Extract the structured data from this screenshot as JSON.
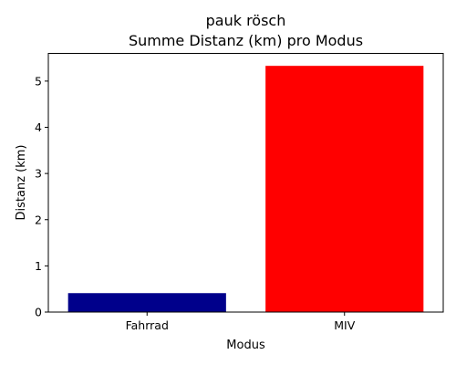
{
  "chart_data": {
    "type": "bar",
    "title_line1": "pauk rösch",
    "title_line2": "Summe Distanz (km) pro Modus",
    "xlabel": "Modus",
    "ylabel": "Distanz (km)",
    "categories": [
      "Fahrrad",
      "MIV"
    ],
    "values": [
      0.41,
      5.33
    ],
    "colors": [
      "#00008b",
      "#ff0000"
    ],
    "ylim": [
      0,
      5.6
    ],
    "yticks": [
      0,
      1,
      2,
      3,
      4,
      5
    ],
    "grid": false
  }
}
